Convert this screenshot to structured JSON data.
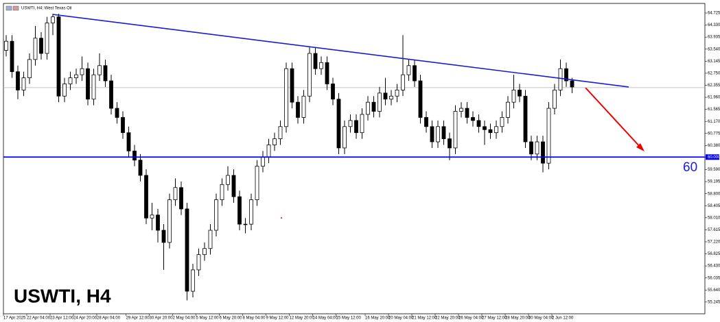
{
  "chart_data": {
    "type": "candlestick",
    "title": "USWTI, H4: West Texas Oil",
    "heading": "USWTI, H4",
    "annotation": "60",
    "categories": [
      "17 Apr 2025",
      null,
      null,
      null,
      "22 Apr 04:00",
      null,
      null,
      null,
      "23 Apr 12:00",
      null,
      null,
      null,
      "24 Apr 20:00",
      null,
      null,
      null,
      "28 Apr 04:00",
      null,
      null,
      null,
      null,
      "29 Apr 12:00",
      null,
      null,
      null,
      "30 Apr 20:00",
      null,
      null,
      null,
      "2 May 04:00",
      null,
      null,
      null,
      "5 May 12:00",
      null,
      null,
      null,
      "6 May 20:00",
      null,
      null,
      null,
      "8 May 04:00",
      null,
      null,
      null,
      "9 May 12:00",
      null,
      null,
      null,
      "12 May 20:00",
      null,
      null,
      null,
      "14 May 04:00",
      null,
      null,
      null,
      "15 May 12:00",
      null,
      null,
      null,
      null,
      "16 May 20:00",
      null,
      null,
      null,
      "20 May 04:00",
      null,
      null,
      null,
      "21 May 12:00",
      null,
      null,
      null,
      "22 May 20:00",
      null,
      null,
      null,
      "26 May 04:00",
      null,
      null,
      null,
      "27 May 12:00",
      null,
      null,
      null,
      "28 May 20:00",
      null,
      null,
      null,
      "30 May 04:00",
      null,
      null,
      null,
      "2 Jun 12:00",
      null,
      null,
      null
    ],
    "open": [
      63.5,
      63.8,
      62.8,
      62.2,
      62.6,
      63.2,
      63.9,
      63.4,
      64.4,
      64.6,
      62.0,
      62.4,
      62.6,
      62.7,
      62.9,
      61.9,
      62.7,
      63.0,
      62.5,
      61.6,
      61.3,
      60.8,
      60.2,
      59.9,
      59.4,
      58.0,
      58.1,
      57.6,
      57.2,
      58.6,
      59.0,
      58.3,
      55.6,
      56.3,
      56.8,
      57.0,
      57.6,
      58.6,
      59.1,
      59.4,
      58.7,
      57.8,
      57.8,
      58.6,
      59.7,
      60.0,
      60.4,
      60.6,
      61.0,
      62.9,
      61.8,
      61.3,
      62.0,
      63.4,
      62.9,
      63.1,
      62.4,
      61.9,
      60.3,
      61.0,
      61.2,
      60.8,
      61.4,
      61.8,
      61.5,
      62.1,
      61.9,
      62.0,
      62.2,
      62.7,
      63.0,
      62.5,
      61.3,
      61.0,
      60.5,
      61.0,
      60.6,
      60.3,
      61.5,
      61.6,
      61.3,
      61.2,
      61.0,
      60.9,
      60.8,
      61.0,
      61.3,
      61.8,
      62.2,
      62.0,
      60.5,
      60.1,
      60.5,
      59.8,
      61.6,
      62.2,
      62.9,
      62.5
    ],
    "high": [
      64.0,
      64.0,
      63.0,
      62.8,
      63.4,
      64.3,
      64.1,
      64.6,
      64.7,
      64.7,
      62.6,
      62.8,
      62.9,
      63.3,
      63.1,
      62.9,
      63.4,
      63.2,
      62.7,
      61.8,
      61.5,
      61.0,
      60.4,
      60.1,
      59.6,
      58.5,
      58.3,
      57.8,
      58.8,
      59.3,
      59.2,
      58.5,
      56.5,
      57.0,
      57.2,
      57.8,
      58.8,
      59.3,
      59.7,
      59.6,
      58.9,
      58.0,
      58.8,
      59.9,
      60.2,
      60.6,
      60.8,
      61.2,
      63.1,
      63.1,
      62.0,
      62.2,
      63.6,
      63.6,
      63.3,
      63.3,
      62.6,
      62.1,
      61.2,
      61.4,
      61.4,
      61.6,
      62.0,
      62.0,
      62.3,
      62.6,
      62.2,
      62.4,
      64.0,
      63.2,
      63.2,
      62.7,
      61.5,
      61.2,
      61.2,
      61.2,
      60.8,
      61.7,
      61.8,
      61.8,
      61.5,
      61.4,
      61.2,
      61.1,
      61.2,
      61.5,
      62.0,
      62.7,
      62.4,
      62.2,
      60.7,
      60.7,
      60.7,
      61.8,
      62.4,
      63.2,
      63.1,
      62.6
    ],
    "low": [
      63.3,
      62.6,
      61.9,
      62.0,
      62.4,
      63.0,
      63.2,
      63.2,
      64.0,
      61.8,
      61.8,
      62.2,
      62.4,
      62.5,
      61.7,
      61.7,
      62.5,
      62.3,
      61.4,
      61.1,
      60.6,
      60.0,
      59.7,
      59.2,
      57.8,
      57.6,
      57.2,
      56.3,
      57.0,
      58.4,
      58.1,
      55.3,
      55.4,
      56.1,
      56.6,
      56.8,
      57.4,
      58.4,
      58.9,
      58.5,
      57.6,
      57.5,
      57.6,
      58.4,
      59.5,
      59.8,
      60.2,
      60.4,
      60.8,
      61.6,
      61.1,
      61.1,
      61.8,
      62.7,
      62.7,
      62.2,
      61.7,
      60.1,
      60.1,
      60.8,
      60.6,
      60.6,
      61.2,
      61.3,
      61.3,
      61.7,
      61.7,
      61.8,
      62.0,
      62.5,
      62.3,
      61.1,
      60.8,
      60.3,
      60.3,
      60.4,
      59.9,
      60.1,
      61.3,
      61.1,
      61.0,
      60.8,
      60.4,
      60.6,
      60.6,
      60.8,
      61.1,
      61.6,
      61.8,
      60.3,
      59.9,
      59.9,
      59.5,
      59.6,
      61.4,
      62.0,
      62.3,
      62.1
    ],
    "close": [
      63.8,
      62.8,
      62.2,
      62.6,
      63.2,
      63.9,
      63.4,
      64.4,
      64.6,
      62.0,
      62.4,
      62.6,
      62.7,
      62.9,
      61.9,
      62.7,
      63.0,
      62.5,
      61.6,
      61.3,
      60.8,
      60.2,
      59.9,
      59.4,
      58.0,
      58.1,
      57.6,
      57.2,
      58.6,
      59.0,
      58.3,
      55.6,
      56.3,
      56.8,
      57.0,
      57.6,
      58.6,
      59.1,
      59.4,
      58.7,
      57.8,
      57.8,
      58.6,
      59.7,
      60.0,
      60.4,
      60.6,
      61.0,
      62.9,
      61.8,
      61.3,
      62.0,
      63.4,
      62.9,
      63.1,
      62.4,
      61.9,
      60.3,
      61.0,
      61.2,
      60.8,
      61.4,
      61.8,
      61.5,
      62.1,
      61.9,
      62.0,
      62.2,
      62.7,
      63.0,
      62.5,
      61.3,
      61.0,
      60.5,
      61.0,
      60.6,
      60.3,
      61.5,
      61.6,
      61.3,
      61.2,
      61.0,
      60.9,
      60.8,
      61.0,
      61.3,
      61.8,
      62.2,
      62.0,
      60.5,
      60.1,
      60.5,
      59.8,
      61.6,
      62.2,
      62.9,
      62.5,
      62.3
    ],
    "up_color": "#ffffff",
    "down_color": "#000000",
    "ylim": [
      54.86,
      65.04
    ],
    "yticks": [
      64.725,
      {
        "value": 64.33,
        "label": "64.330"
      },
      63.935,
      {
        "value": 63.54,
        "label": "63.540"
      },
      63.145,
      {
        "value": 62.75,
        "label": "62.750"
      },
      62.355,
      {
        "value": 61.96,
        "label": "61.960"
      },
      61.565,
      {
        "value": 61.17,
        "label": "61.170"
      },
      60.775,
      {
        "value": 60.38,
        "label": "60.380"
      },
      {
        "value": 60,
        "label": "60.000"
      },
      {
        "value": 59.59,
        "label": "59.590"
      },
      59.195,
      {
        "value": 58.8,
        "label": "58.800"
      },
      58.405,
      {
        "value": 58.01,
        "label": "58.010"
      },
      57.615,
      {
        "value": 57.22,
        "label": "57.220"
      },
      56.825,
      {
        "value": 56.43,
        "label": "56.430"
      },
      56.035,
      {
        "value": 55.64,
        "label": "55.640"
      },
      55.245
    ],
    "bid_line": 62.28,
    "level": {
      "value": 60,
      "color": "#0000ff"
    },
    "trendline": {
      "x": [
        8,
        106.7
      ],
      "values": [
        64.68,
        62.3
      ],
      "color": "#1a1ad6"
    }
  }
}
